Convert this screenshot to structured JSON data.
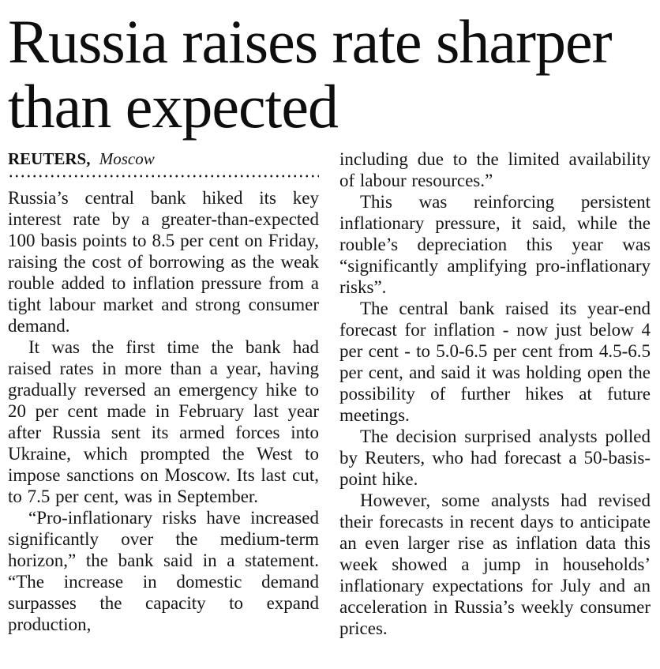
{
  "article": {
    "headline": "Russia raises rate sharper than expected",
    "byline": {
      "agency": "REUTERS,",
      "location": "Moscow"
    },
    "body": {
      "left_column": [
        {
          "text": "Russia’s central bank hiked its key interest rate by a greater-than-expected 100 basis points to 8.5 per cent on Friday, raising the cost of borrowing as the weak rouble added to inflation pressure from a tight labour market and strong consumer demand."
        },
        {
          "text": "It was the first time the bank had raised rates in more than a year, having gradually reversed an emergency hike to 20 per cent made in February last year after Russia sent its armed forces into Ukraine, which prompted the West to impose sanctions on Moscow. Its last cut, to 7.5 per cent, was in September."
        },
        {
          "text": "“Pro-inflationary risks have increased significantly over the medium-term horizon,” the bank said in a statement. “The increase in domestic demand surpasses the capacity to expand production,"
        }
      ],
      "right_column": [
        {
          "text": "including due to the limited availability of labour resources.”"
        },
        {
          "text": "This was reinforcing persistent inflationary pressure, it said, while the rouble’s depreciation this year was “significantly amplifying pro-inflationary risks”."
        },
        {
          "text": "The central bank raised its year-end forecast for inflation - now just below 4 per cent - to 5.0-6.5 per cent from 4.5-6.5 per cent, and said it was holding open the possibility of further hikes at future meetings."
        },
        {
          "text": "The decision surprised analysts polled by Reuters, who had forecast a 50-basis-point hike."
        },
        {
          "text": "However, some analysts had revised their forecasts in recent days to anticipate an even larger rise as inflation data this week showed a jump in households’ inflationary expectations for July and an acceleration in Russia’s weekly consumer prices."
        }
      ]
    }
  }
}
